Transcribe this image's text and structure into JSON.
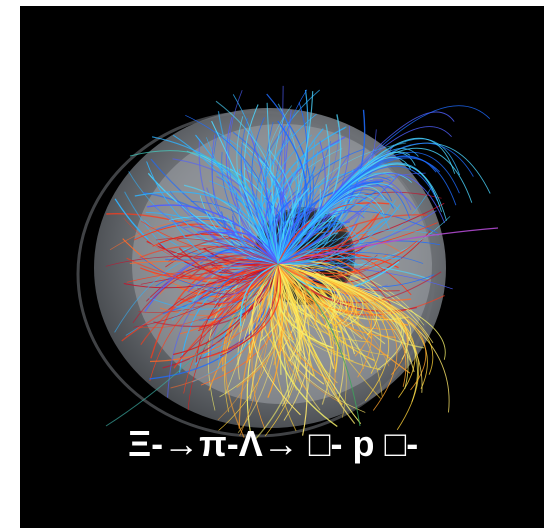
{
  "figure": {
    "caption": "Ξ-→π-Λ→ □- p □-"
  },
  "colors": {
    "background": "#000000",
    "detector_body": "#8a8f94",
    "caption_text": "#ffffff"
  },
  "icons": {
    "event_display": "detector-collision-event-image"
  }
}
